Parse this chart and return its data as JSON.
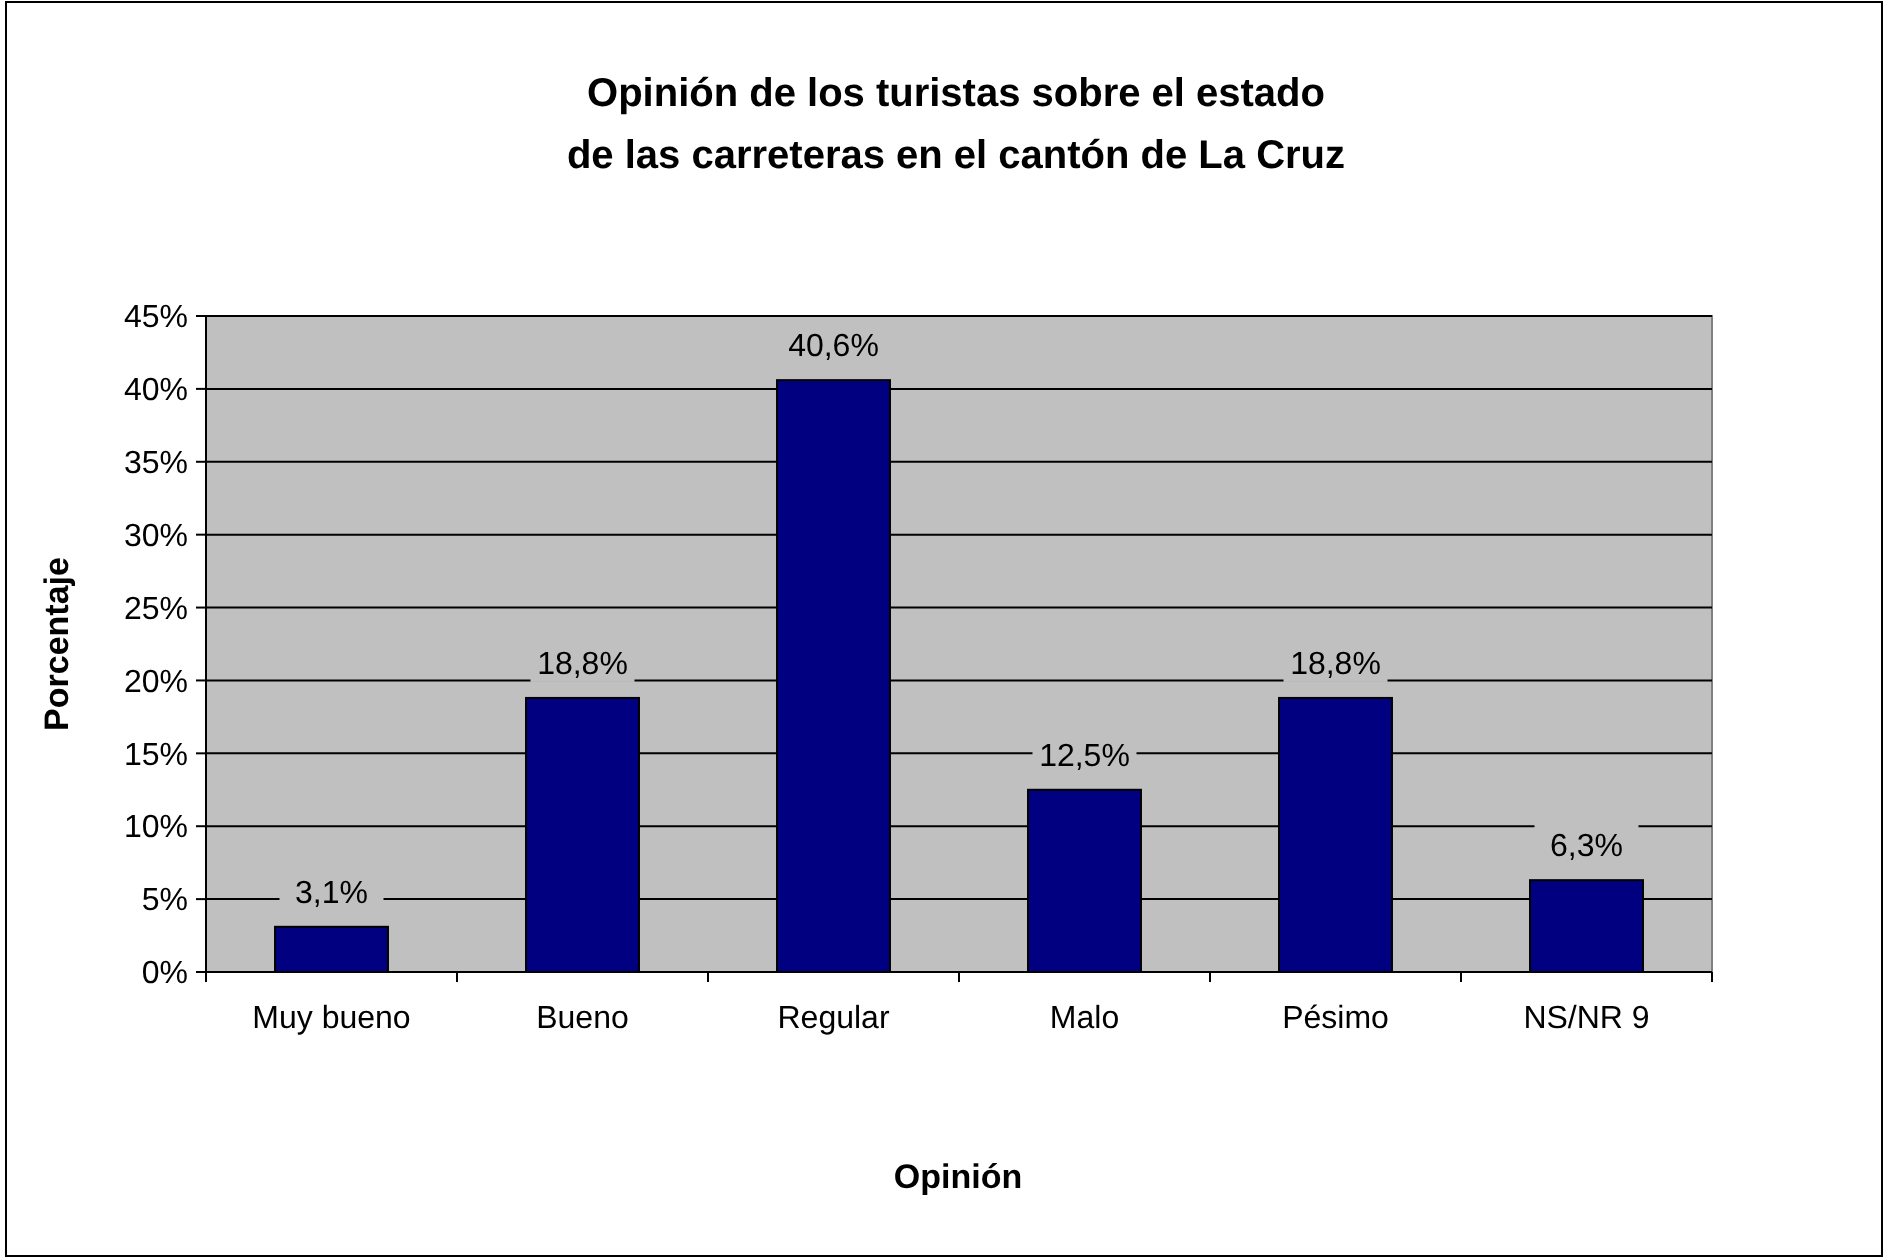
{
  "chart_data": {
    "type": "bar",
    "title": "Opinión de los turistas sobre el estado\nde las carreteras en el cantón de La Cruz",
    "xlabel": "Opinión",
    "ylabel": "Porcentaje",
    "categories": [
      "Muy bueno",
      "Bueno",
      "Regular",
      "Malo",
      "Pésimo",
      "NS/NR 9"
    ],
    "values": [
      3.1,
      18.8,
      40.6,
      12.5,
      18.8,
      6.3
    ],
    "color": "#000080",
    "value_labels": [
      "3,1%",
      "18,8%",
      "40,6%",
      "12,5%",
      "18,8%",
      "6,3%"
    ],
    "ylim": [
      0,
      45
    ],
    "yticks": [
      {
        "value": 0,
        "label": "0%"
      },
      {
        "value": 5,
        "label": "5%"
      },
      {
        "value": 10,
        "label": "10%"
      },
      {
        "value": 15,
        "label": "15%"
      },
      {
        "value": 20,
        "label": "20%"
      },
      {
        "value": 25,
        "label": "25%"
      },
      {
        "value": 30,
        "label": "30%"
      },
      {
        "value": 35,
        "label": "35%"
      },
      {
        "value": 40,
        "label": "40%"
      },
      {
        "value": 45,
        "label": "45%"
      }
    ],
    "grid": "y"
  }
}
